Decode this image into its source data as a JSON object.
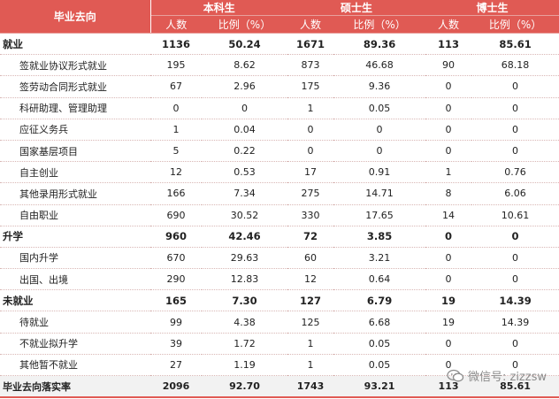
{
  "header": {
    "corner_label": "毕业去向",
    "groups": [
      "本科生",
      "硕士生",
      "博士生"
    ],
    "sub_labels": [
      "人数",
      "比例（%）",
      "人数",
      "比例（%）",
      "人数",
      "比例（%）"
    ]
  },
  "rows": [
    {
      "type": "cat",
      "name": "就业",
      "values": [
        "1136",
        "50.24",
        "1671",
        "89.36",
        "113",
        "85.61"
      ]
    },
    {
      "type": "sub",
      "name": "签就业协议形式就业",
      "values": [
        "195",
        "8.62",
        "873",
        "46.68",
        "90",
        "68.18"
      ]
    },
    {
      "type": "sub",
      "name": "签劳动合同形式就业",
      "values": [
        "67",
        "2.96",
        "175",
        "9.36",
        "0",
        "0"
      ]
    },
    {
      "type": "sub",
      "name": "科研助理、管理助理",
      "values": [
        "0",
        "0",
        "1",
        "0.05",
        "0",
        "0"
      ]
    },
    {
      "type": "sub",
      "name": "应征义务兵",
      "values": [
        "1",
        "0.04",
        "0",
        "0",
        "0",
        "0"
      ]
    },
    {
      "type": "sub",
      "name": "国家基层项目",
      "values": [
        "5",
        "0.22",
        "0",
        "0",
        "0",
        "0"
      ]
    },
    {
      "type": "sub",
      "name": "自主创业",
      "values": [
        "12",
        "0.53",
        "17",
        "0.91",
        "1",
        "0.76"
      ]
    },
    {
      "type": "sub",
      "name": "其他录用形式就业",
      "values": [
        "166",
        "7.34",
        "275",
        "14.71",
        "8",
        "6.06"
      ]
    },
    {
      "type": "sub",
      "name": "自由职业",
      "values": [
        "690",
        "30.52",
        "330",
        "17.65",
        "14",
        "10.61"
      ]
    },
    {
      "type": "cat",
      "name": "升学",
      "values": [
        "960",
        "42.46",
        "72",
        "3.85",
        "0",
        "0"
      ]
    },
    {
      "type": "sub",
      "name": "国内升学",
      "values": [
        "670",
        "29.63",
        "60",
        "3.21",
        "0",
        "0"
      ]
    },
    {
      "type": "sub",
      "name": "出国、出境",
      "values": [
        "290",
        "12.83",
        "12",
        "0.64",
        "0",
        "0"
      ]
    },
    {
      "type": "cat",
      "name": "未就业",
      "values": [
        "165",
        "7.30",
        "127",
        "6.79",
        "19",
        "14.39"
      ]
    },
    {
      "type": "sub",
      "name": "待就业",
      "values": [
        "99",
        "4.38",
        "125",
        "6.68",
        "19",
        "14.39"
      ]
    },
    {
      "type": "sub",
      "name": "不就业拟升学",
      "values": [
        "39",
        "1.72",
        "1",
        "0.05",
        "0",
        "0"
      ]
    },
    {
      "type": "sub",
      "name": "其他暂不就业",
      "values": [
        "27",
        "1.19",
        "1",
        "0.05",
        "0",
        "0"
      ]
    },
    {
      "type": "total",
      "name": "毕业去向落实率",
      "values": [
        "2096",
        "92.70",
        "1743",
        "93.21",
        "113",
        "85.61"
      ]
    }
  ],
  "watermark": {
    "text": "微信号: zizzsw",
    "icon": "wechat-icon"
  }
}
